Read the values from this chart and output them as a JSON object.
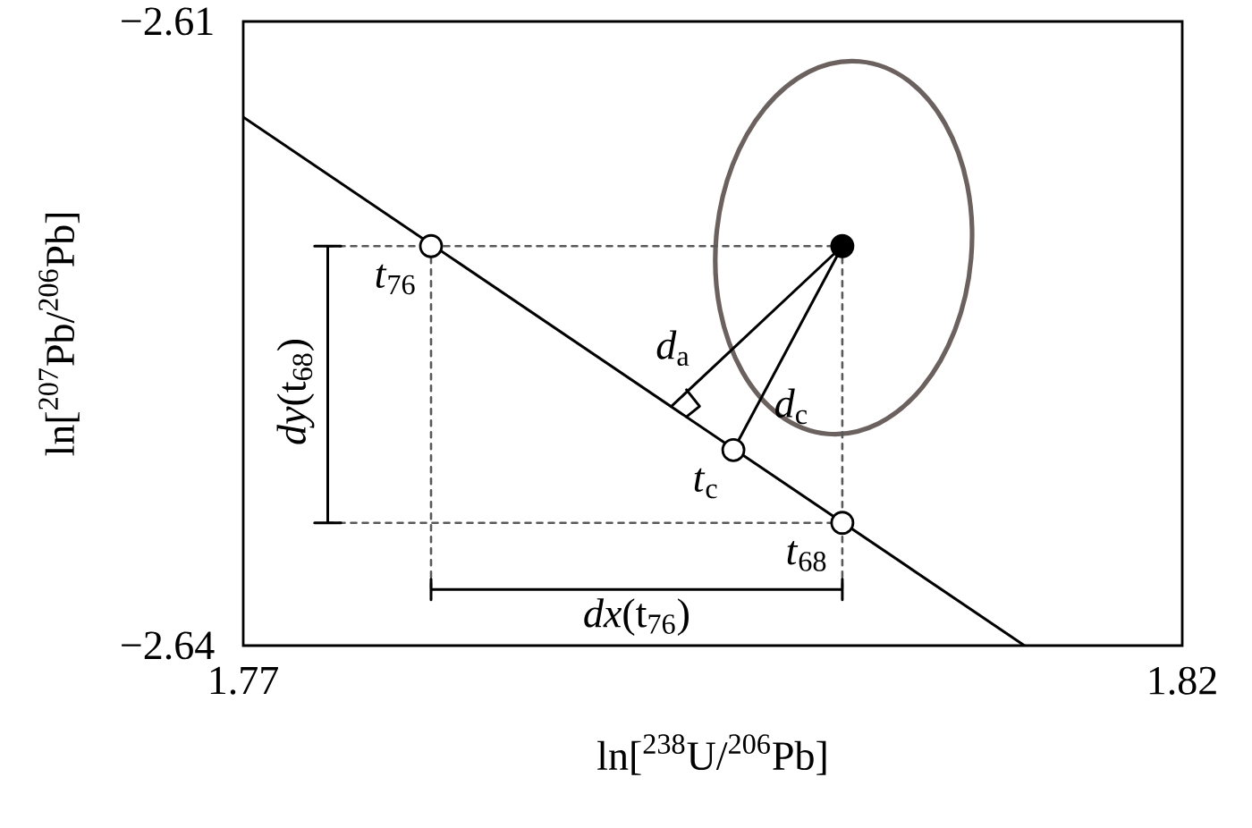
{
  "chart_data": {
    "type": "line",
    "xlabel": "ln[$^{238}$U/$^{206}$Pb]",
    "ylabel": "ln[$^{207}$Pb/$^{206}$Pb]",
    "xlim": [
      1.77,
      1.82
    ],
    "ylim": [
      -2.64,
      -2.61
    ],
    "xticks": [
      1.77,
      1.82
    ],
    "yticks": [
      {
        "value": -2.64,
        "label": "−2.64"
      },
      {
        "value": -2.61,
        "label": "−2.61"
      }
    ],
    "marker": "none",
    "series": [
      {
        "color": "#000000",
        "x": [
          1.77,
          1.8116
        ],
        "values": [
          -2.6146,
          -2.64
        ]
      },
      {
        "color": "#595959",
        "line_style": "dotted",
        "x": [
          1.7745,
          1.8019
        ],
        "values": [
          -2.6208,
          -2.6208
        ]
      },
      {
        "color": "#595959",
        "line_style": "dotted",
        "x": [
          1.7745,
          1.8019
        ],
        "values": [
          -2.6341,
          -2.6341
        ]
      },
      {
        "color": "#595959",
        "line_style": "dotted",
        "x": [
          1.78,
          1.78
        ],
        "values": [
          -2.6208,
          -2.6373
        ]
      },
      {
        "color": "#595959",
        "line_style": "dotted",
        "x": [
          1.8019,
          1.8019
        ],
        "values": [
          -2.6208,
          -2.6373
        ]
      },
      {
        "color": "#000000",
        "x": [
          1.8019,
          1.7928
        ],
        "values": [
          -2.6208,
          -2.6285
        ]
      },
      {
        "color": "#000000",
        "x": [
          1.8019,
          1.7961
        ],
        "values": [
          -2.6208,
          -2.6306
        ]
      },
      {
        "color": "#000000",
        "x": [
          1.7936,
          1.7943,
          1.7936
        ],
        "values": [
          -2.6277,
          -2.6285,
          -2.629
        ]
      },
      {
        "color": "#000000",
        "name": "*dy*(t$_{68}$)",
        "x": [
          1.7738,
          1.7752,
          1.7745,
          1.7745,
          1.7738,
          1.7752
        ],
        "values": [
          -2.6208,
          -2.6208,
          -2.6208,
          -2.6341,
          -2.6341,
          -2.6341
        ]
      },
      {
        "color": "#000000",
        "name": "*dx*(t$_{76}$)",
        "x": [
          1.78,
          1.78,
          1.78,
          1.8019,
          1.8019,
          1.8019
        ],
        "values": [
          -2.6368,
          -2.6378,
          -2.6373,
          -2.6373,
          -2.6368,
          -2.6378
        ]
      },
      {
        "type": "scatter",
        "color": "#ffffff",
        "marker": "circle",
        "x": [
          1.78,
          1.7961,
          1.8019
        ],
        "values": [
          -2.6208,
          -2.6306,
          -2.6341
        ]
      },
      {
        "type": "scatter",
        "color": "#000000",
        "marker": "circle",
        "x": [
          1.8019
        ],
        "values": [
          -2.6208
        ]
      }
    ],
    "annotations": [
      {
        "text": "*t*$_{76}$",
        "x": 1.78,
        "y": -2.6208
      },
      {
        "text": "*t*$_{c}$",
        "x": 1.7961,
        "y": -2.6306
      },
      {
        "text": "*t*$_{68}$",
        "x": 1.8019,
        "y": -2.6341
      },
      {
        "text": "*d*$_{a}$",
        "x": 1.7961,
        "y": -2.6257
      },
      {
        "text": "*d*$_{c}$",
        "x": 1.7973,
        "y": -2.6285
      }
    ]
  }
}
